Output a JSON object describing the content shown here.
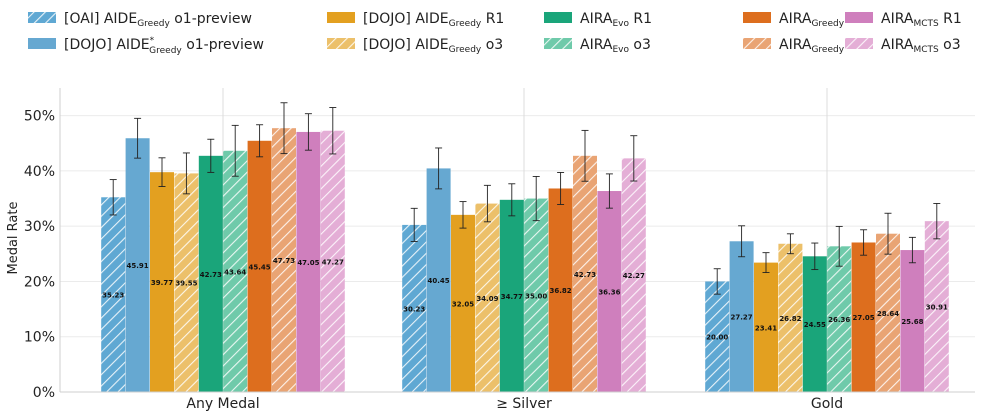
{
  "chart_data": {
    "type": "bar",
    "ylabel": "Medal Rate",
    "ylim": [
      0,
      55
    ],
    "yticks": [
      0,
      10,
      20,
      30,
      40,
      50
    ],
    "ytick_suffix": "%",
    "grid": "horizontal",
    "legend_position": "top",
    "categories": [
      "Any Medal",
      "≥ Silver",
      "Gold"
    ],
    "series": [
      {
        "name": "[OAI] AIDE",
        "sub": "Greedy",
        "sup": "",
        "suffix": " o1-preview",
        "color": "#5fa8d3",
        "hatch": true,
        "values": [
          35.23,
          30.23,
          20.0
        ],
        "errors": [
          3.2,
          3.0,
          2.3
        ]
      },
      {
        "name": "[DOJO] AIDE",
        "sub": "Greedy",
        "sup": "*",
        "suffix": " o1-preview",
        "color": "#66a8d1",
        "hatch": false,
        "values": [
          45.91,
          40.45,
          27.27
        ],
        "errors": [
          3.6,
          3.7,
          2.8
        ]
      },
      {
        "name": "[DOJO] AIDE",
        "sub": "Greedy",
        "sup": "",
        "suffix": " R1",
        "color": "#e3a020",
        "hatch": false,
        "values": [
          39.77,
          32.05,
          23.41
        ],
        "errors": [
          2.6,
          2.4,
          1.8
        ]
      },
      {
        "name": "[DOJO] AIDE",
        "sub": "Greedy",
        "sup": "",
        "suffix": " o3",
        "color": "#ecc06a",
        "hatch": true,
        "values": [
          39.55,
          34.09,
          26.82
        ],
        "errors": [
          3.7,
          3.3,
          1.8
        ]
      },
      {
        "name": "AIRA",
        "sub": "Evo",
        "sup": "",
        "suffix": " R1",
        "color": "#1aa57a",
        "hatch": false,
        "values": [
          42.73,
          34.77,
          24.55
        ],
        "errors": [
          3.0,
          2.9,
          2.4
        ]
      },
      {
        "name": "AIRA",
        "sub": "Evo",
        "sup": "",
        "suffix": " o3",
        "color": "#6fcaaa",
        "hatch": true,
        "values": [
          43.64,
          35.0,
          26.36
        ],
        "errors": [
          4.6,
          4.0,
          3.6
        ]
      },
      {
        "name": "AIRA",
        "sub": "Greedy",
        "sup": "",
        "suffix": " R1",
        "color": "#dd6e1e",
        "hatch": false,
        "values": [
          45.45,
          36.82,
          27.05
        ],
        "errors": [
          2.9,
          2.9,
          2.3
        ]
      },
      {
        "name": "AIRA",
        "sub": "Greedy",
        "sup": "",
        "suffix": " o3",
        "color": "#e9a474",
        "hatch": true,
        "values": [
          47.73,
          42.73,
          28.64
        ],
        "errors": [
          4.6,
          4.6,
          3.7
        ]
      },
      {
        "name": "AIRA",
        "sub": "MCTS",
        "sup": "",
        "suffix": " R1",
        "color": "#cf7fbd",
        "hatch": false,
        "values": [
          47.05,
          36.36,
          25.68
        ],
        "errors": [
          3.3,
          3.1,
          2.3
        ]
      },
      {
        "name": "AIRA",
        "sub": "MCTS",
        "sup": "",
        "suffix": " o3",
        "color": "#e4aed6",
        "hatch": true,
        "values": [
          47.27,
          42.27,
          30.91
        ],
        "errors": [
          4.2,
          4.1,
          3.2
        ]
      }
    ]
  }
}
